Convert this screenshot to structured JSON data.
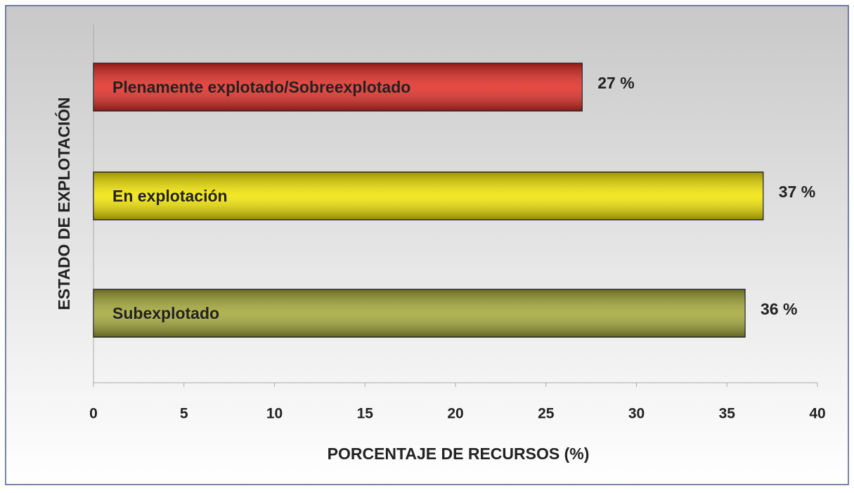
{
  "chart_data": {
    "type": "bar",
    "orientation": "horizontal",
    "categories": [
      "Plenamente explotado/Sobreexplotado",
      "En explotación",
      "Subexplotado"
    ],
    "values": [
      27,
      37,
      36
    ],
    "value_labels": [
      "27 %",
      "37 %",
      "36 %"
    ],
    "colors": [
      "#e02a22",
      "#f2e400",
      "#a3a636"
    ],
    "xlabel": "PORCENTAJE DE RECURSOS (%)",
    "ylabel": "ESTADO DE EXPLOTACIÓN",
    "xlim": [
      0,
      40
    ],
    "xticks": [
      0,
      5,
      10,
      15,
      20,
      25,
      30,
      35,
      40
    ]
  }
}
